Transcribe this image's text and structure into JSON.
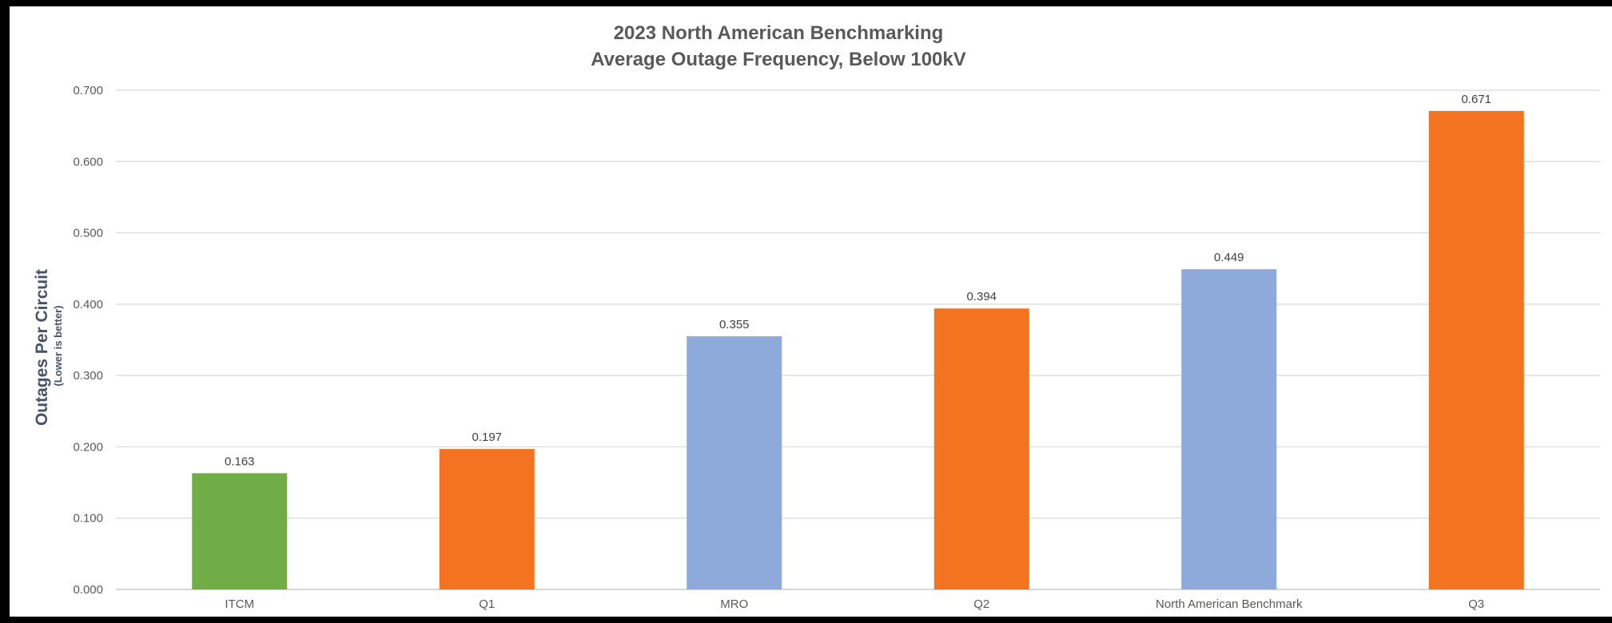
{
  "chart_data": {
    "type": "bar",
    "title_lines": [
      "2023 North American Benchmarking",
      "Average Outage Frequency, Below 100kV"
    ],
    "ylabel": "Outages Per Circuit",
    "ylabel_sub": "(Lower is better)",
    "xlabel": "",
    "ylim": [
      0,
      0.7
    ],
    "yticks": [
      "0.000",
      "0.100",
      "0.200",
      "0.300",
      "0.400",
      "0.500",
      "0.600",
      "0.700"
    ],
    "grid": true,
    "categories": [
      "ITCM",
      "Q1",
      "MRO",
      "Q2",
      "North American Benchmark",
      "Q3"
    ],
    "values": [
      0.163,
      0.197,
      0.355,
      0.394,
      0.449,
      0.671
    ],
    "value_labels": [
      "0.163",
      "0.197",
      "0.355",
      "0.394",
      "0.449",
      "0.671"
    ],
    "bar_colors": [
      "#70ad47",
      "#f47321",
      "#8eaadb",
      "#f47321",
      "#8eaadb",
      "#f47321"
    ]
  }
}
